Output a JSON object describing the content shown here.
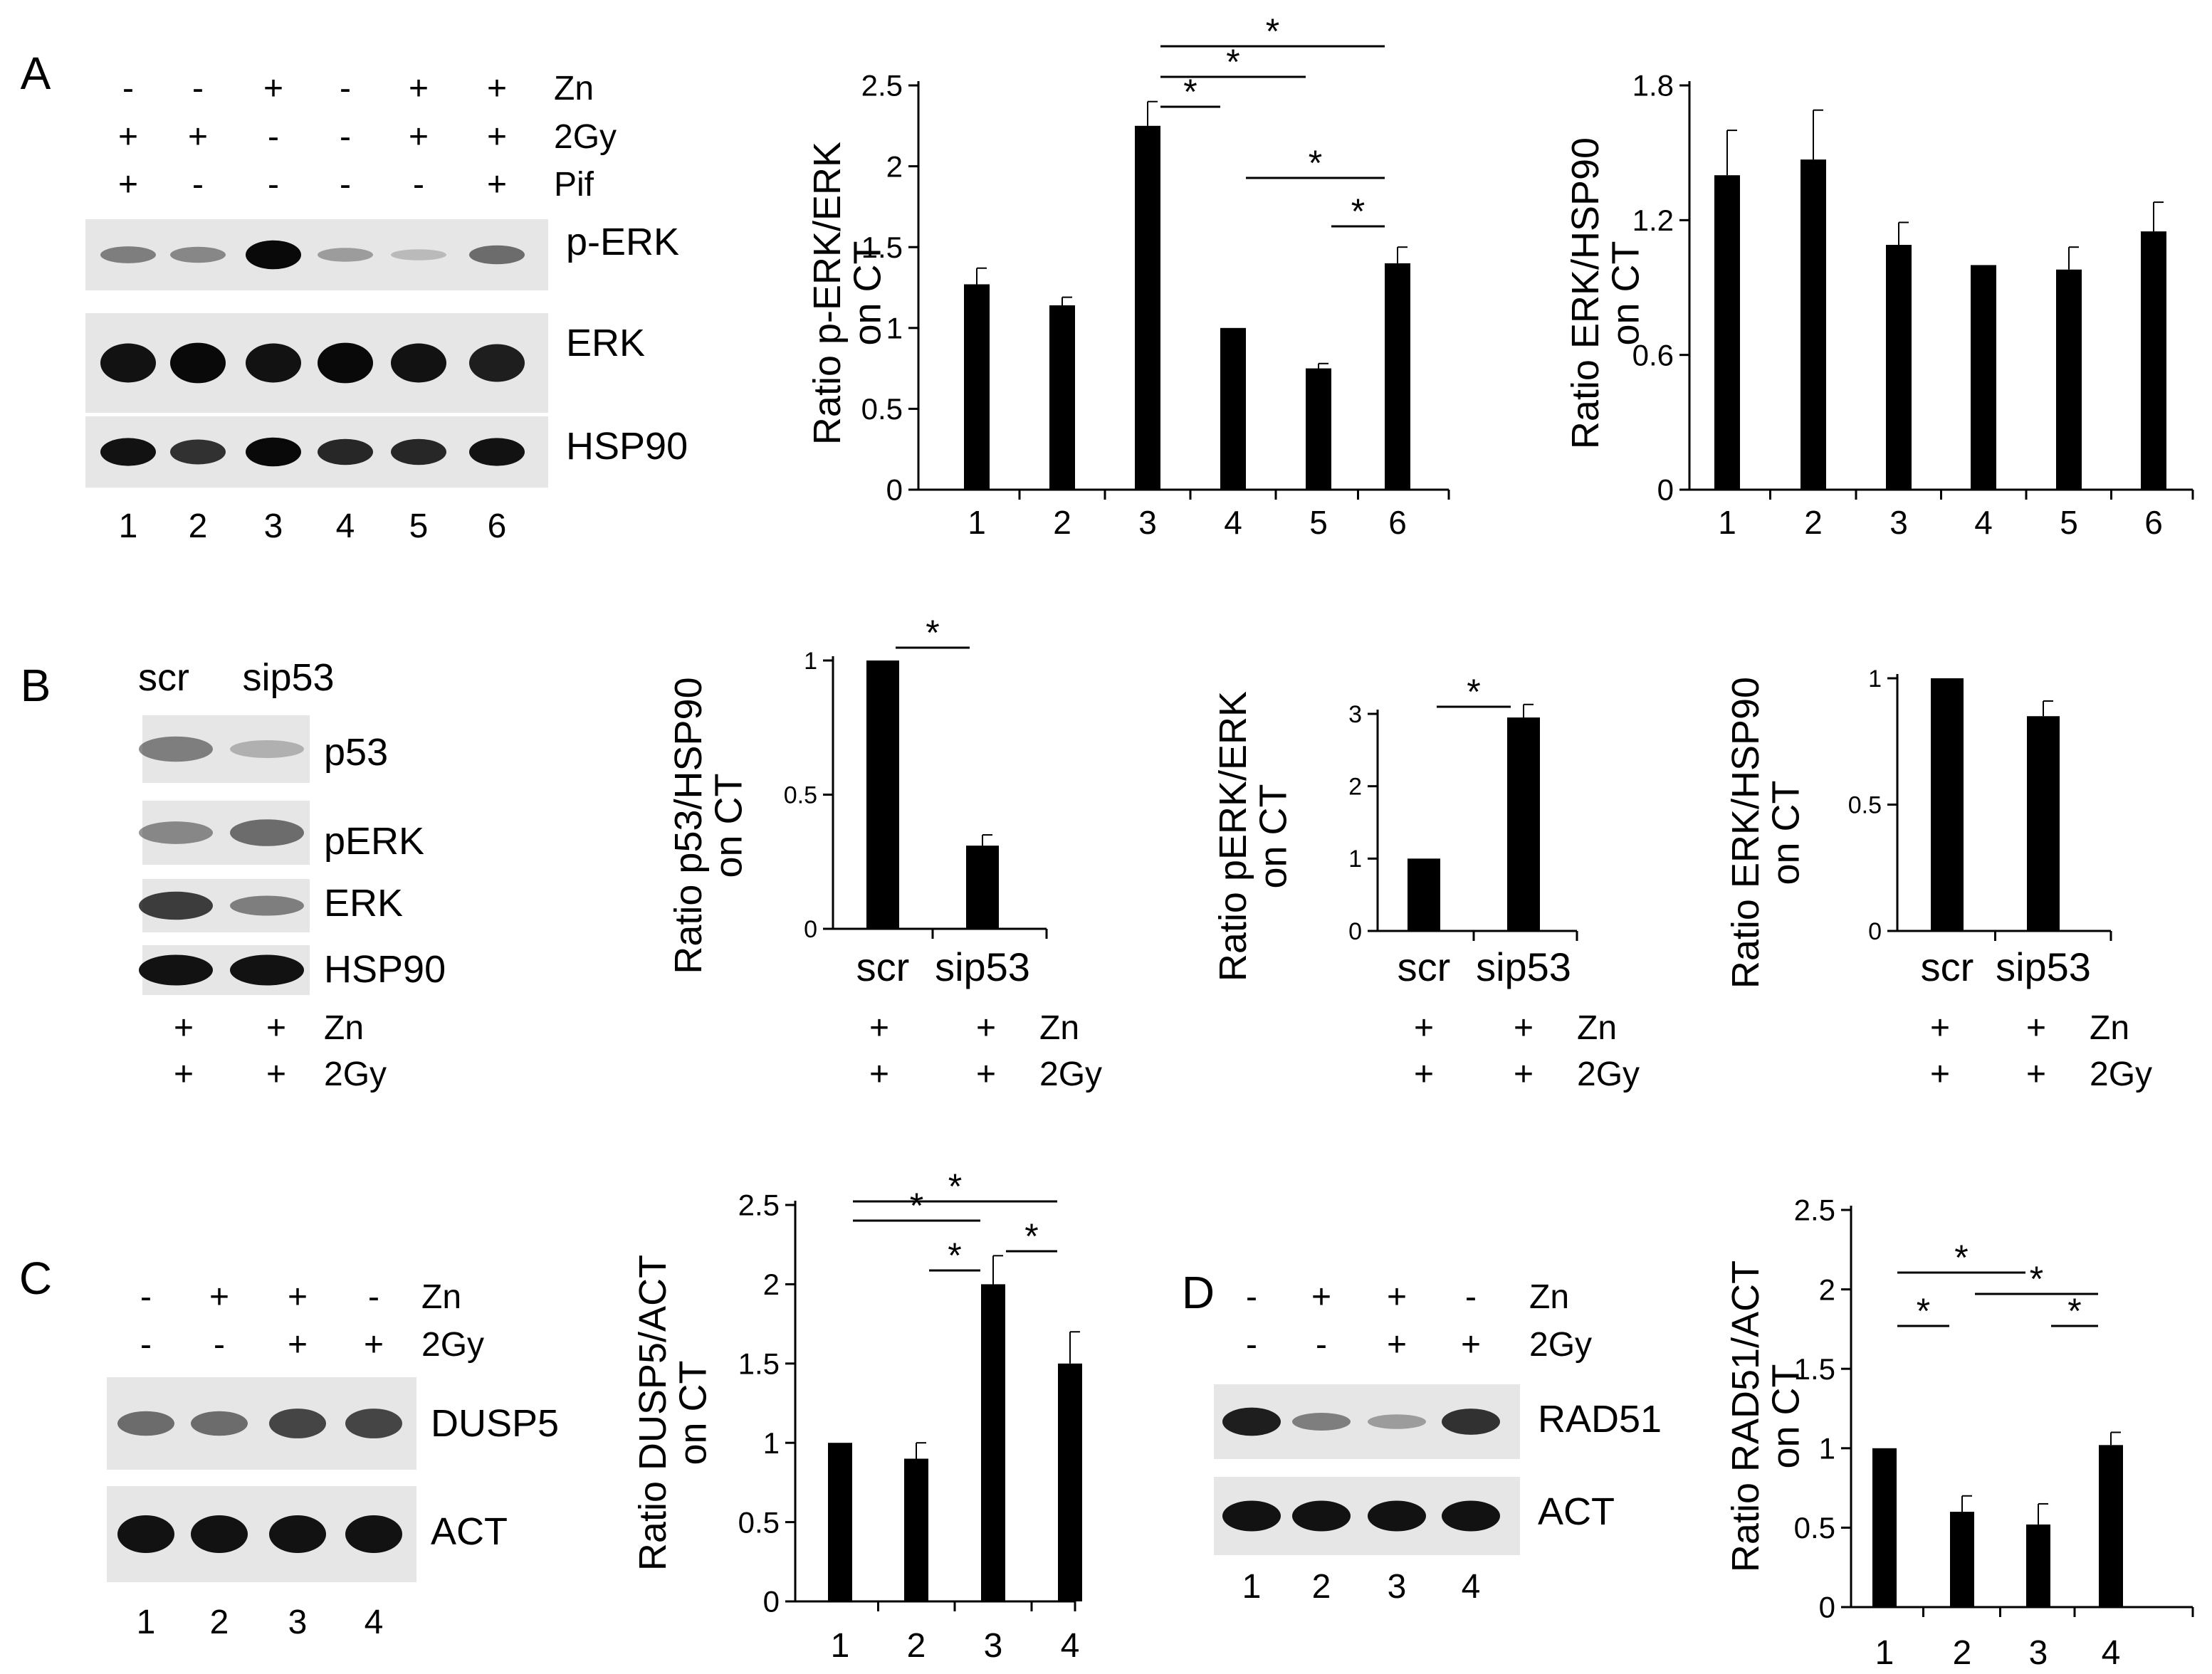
{
  "panels": {
    "A": {
      "letter": "A"
    },
    "B": {
      "letter": "B"
    },
    "C": {
      "letter": "C"
    },
    "D": {
      "letter": "D"
    }
  },
  "blots": [
    {
      "id": "A",
      "conditions": [
        {
          "label": "Zn",
          "signs": [
            "-",
            "-",
            "+",
            "-",
            "+",
            "+"
          ]
        },
        {
          "label": "2Gy",
          "signs": [
            "+",
            "+",
            "-",
            "-",
            "+",
            "+"
          ]
        },
        {
          "label": "Pif",
          "signs": [
            "+",
            "-",
            "-",
            "-",
            "-",
            "+"
          ]
        }
      ],
      "lanes": [
        "1",
        "2",
        "3",
        "4",
        "5",
        "6"
      ],
      "strips": [
        {
          "label": "p-ERK",
          "intensity": [
            0.35,
            0.3,
            0.95,
            0.2,
            0.05,
            0.45
          ]
        },
        {
          "label": "ERK",
          "intensity": [
            0.9,
            0.95,
            0.9,
            0.95,
            0.9,
            0.85
          ]
        },
        {
          "label": "HSP90",
          "intensity": [
            0.9,
            0.75,
            0.95,
            0.8,
            0.8,
            0.9
          ]
        }
      ]
    },
    {
      "id": "B",
      "header": [
        "scr",
        "sip53"
      ],
      "strips": [
        {
          "label": "p53",
          "intensity": [
            0.35,
            0.1
          ]
        },
        {
          "label": "pERK",
          "intensity": [
            0.3,
            0.45
          ]
        },
        {
          "label": "ERK",
          "intensity": [
            0.7,
            0.35
          ]
        },
        {
          "label": "HSP90",
          "intensity": [
            0.9,
            0.9
          ]
        }
      ],
      "conditions": [
        {
          "label": "Zn",
          "signs": [
            "+",
            "+"
          ]
        },
        {
          "label": "2Gy",
          "signs": [
            "+",
            "+"
          ]
        }
      ]
    },
    {
      "id": "C",
      "conditions": [
        {
          "label": "Zn",
          "signs": [
            "-",
            "+",
            "+",
            "-"
          ]
        },
        {
          "label": "2Gy",
          "signs": [
            "-",
            "-",
            "+",
            "+"
          ]
        }
      ],
      "lanes": [
        "1",
        "2",
        "3",
        "4"
      ],
      "strips": [
        {
          "label": "DUSP5",
          "intensity": [
            0.45,
            0.45,
            0.65,
            0.65
          ]
        },
        {
          "label": "ACT",
          "intensity": [
            0.9,
            0.9,
            0.9,
            0.9
          ]
        }
      ]
    },
    {
      "id": "D",
      "conditions": [
        {
          "label": "Zn",
          "signs": [
            "-",
            "+",
            "+",
            "-"
          ]
        },
        {
          "label": "2Gy",
          "signs": [
            "-",
            "-",
            "+",
            "+"
          ]
        }
      ],
      "lanes": [
        "1",
        "2",
        "3",
        "4"
      ],
      "strips": [
        {
          "label": "RAD51",
          "intensity": [
            0.85,
            0.35,
            0.2,
            0.75
          ]
        },
        {
          "label": "ACT",
          "intensity": [
            0.9,
            0.9,
            0.9,
            0.9
          ]
        }
      ]
    }
  ],
  "chart_data": [
    {
      "id": "A-pERK",
      "type": "bar",
      "ylabel": "Ratio p-ERK/ERK on CT",
      "categories": [
        "1",
        "2",
        "3",
        "4",
        "5",
        "6"
      ],
      "values": [
        1.27,
        1.14,
        2.25,
        1.0,
        0.75,
        1.4
      ],
      "errors": [
        0.1,
        0.05,
        0.15,
        0,
        0.03,
        0.1
      ],
      "ylim": [
        0,
        2.5
      ],
      "yticks": [
        "0",
        "0.5",
        "1",
        "1.5",
        "2",
        "2.5"
      ],
      "yticks_values": [
        0,
        0.5,
        1,
        1.5,
        2,
        2.5
      ],
      "significance": [
        {
          "from": 3,
          "to": 4,
          "label": "*"
        },
        {
          "from": 3,
          "to": 5,
          "label": "*"
        },
        {
          "from": 3,
          "to": 6,
          "label": "*"
        },
        {
          "from": 4,
          "to": 6,
          "label": "*"
        },
        {
          "from": 5,
          "to": 6,
          "label": "*"
        }
      ]
    },
    {
      "id": "A-ERK",
      "type": "bar",
      "ylabel": "Ratio ERK/HSP90 on CT",
      "categories": [
        "1",
        "2",
        "3",
        "4",
        "5",
        "6"
      ],
      "values": [
        1.4,
        1.47,
        1.09,
        1.0,
        0.98,
        1.15
      ],
      "errors": [
        0.2,
        0.22,
        0.1,
        0,
        0.1,
        0.13
      ],
      "ylim": [
        0,
        1.8
      ],
      "yticks": [
        "0",
        "0.6",
        "1.2",
        "1.8"
      ],
      "yticks_values": [
        0,
        0.6,
        1.2,
        1.8
      ],
      "significance": []
    },
    {
      "id": "B-p53",
      "type": "bar",
      "ylabel": "Ratio p53/HSP90 on CT",
      "categories": [
        "scr",
        "sip53"
      ],
      "values": [
        1.0,
        0.31
      ],
      "errors": [
        0,
        0.04
      ],
      "ylim": [
        0,
        1
      ],
      "yticks": [
        "0",
        "0.5",
        "1"
      ],
      "yticks_values": [
        0,
        0.5,
        1
      ],
      "significance": [
        {
          "from": 1,
          "to": 2,
          "label": "*"
        }
      ],
      "conditions": [
        {
          "label": "Zn",
          "signs": [
            "+",
            "+"
          ]
        },
        {
          "label": "2Gy",
          "signs": [
            "+",
            "+"
          ]
        }
      ]
    },
    {
      "id": "B-pERK",
      "type": "bar",
      "ylabel": "Ratio pERK/ERK on CT",
      "categories": [
        "scr",
        "sip53"
      ],
      "values": [
        1.0,
        2.95
      ],
      "errors": [
        0,
        0.18
      ],
      "ylim": [
        0,
        3
      ],
      "yticks": [
        "0",
        "1",
        "2",
        "3"
      ],
      "yticks_values": [
        0,
        1,
        2,
        3
      ],
      "significance": [
        {
          "from": 1,
          "to": 2,
          "label": "*"
        }
      ],
      "conditions": [
        {
          "label": "Zn",
          "signs": [
            "+",
            "+"
          ]
        },
        {
          "label": "2Gy",
          "signs": [
            "+",
            "+"
          ]
        }
      ]
    },
    {
      "id": "B-ERK",
      "type": "bar",
      "ylabel": "Ratio ERK/HSP90 on CT",
      "categories": [
        "scr",
        "sip53"
      ],
      "values": [
        1.0,
        0.85
      ],
      "errors": [
        0,
        0.06
      ],
      "ylim": [
        0,
        1
      ],
      "yticks": [
        "0",
        "0.5",
        "1"
      ],
      "yticks_values": [
        0,
        0.5,
        1
      ],
      "significance": [],
      "conditions": [
        {
          "label": "Zn",
          "signs": [
            "+",
            "+"
          ]
        },
        {
          "label": "2Gy",
          "signs": [
            "+",
            "+"
          ]
        }
      ]
    },
    {
      "id": "C-DUSP5",
      "type": "bar",
      "ylabel": "Ratio DUSP5/ACT on CT",
      "categories": [
        "1",
        "2",
        "3",
        "4"
      ],
      "values": [
        1.0,
        0.9,
        2.0,
        1.5
      ],
      "errors": [
        0,
        0.1,
        0.18,
        0.2
      ],
      "ylim": [
        0,
        2.5
      ],
      "yticks": [
        "0",
        "0.5",
        "1",
        "1.5",
        "2",
        "2.5"
      ],
      "yticks_values": [
        0,
        0.5,
        1,
        1.5,
        2,
        2.5
      ],
      "significance": [
        {
          "from": 2,
          "to": 3,
          "label": "*"
        },
        {
          "from": 3,
          "to": 4,
          "label": "*"
        },
        {
          "from": 1,
          "to": 3,
          "label": "*"
        },
        {
          "from": 1,
          "to": 4,
          "label": "*"
        }
      ]
    },
    {
      "id": "D-RAD51",
      "type": "bar",
      "ylabel": "Ratio RAD51/ACT on CT",
      "categories": [
        "1",
        "2",
        "3",
        "4"
      ],
      "values": [
        1.0,
        0.6,
        0.52,
        1.02
      ],
      "errors": [
        0,
        0.1,
        0.13,
        0.08
      ],
      "ylim": [
        0,
        2.5
      ],
      "yticks": [
        "0",
        "0.5",
        "1",
        "1.5",
        "2",
        "2.5"
      ],
      "yticks_values": [
        0,
        0.5,
        1,
        1.5,
        2,
        2.5
      ],
      "significance": [
        {
          "from": 1,
          "to": 2,
          "label": "*"
        },
        {
          "from": 3,
          "to": 4,
          "label": "*"
        },
        {
          "from": 1,
          "to": 3,
          "label": "*"
        },
        {
          "from": 2,
          "to": 4,
          "label": "*"
        }
      ]
    }
  ]
}
